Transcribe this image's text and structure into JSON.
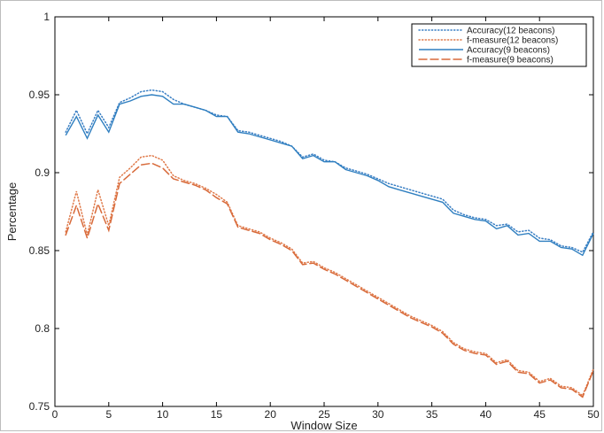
{
  "chart_data": {
    "type": "line",
    "title": "",
    "xlabel": "Window Size",
    "ylabel": "Percentage",
    "xlim": [
      0,
      50
    ],
    "ylim": [
      0.75,
      1.0
    ],
    "xticks": [
      0,
      5,
      10,
      15,
      20,
      25,
      30,
      35,
      40,
      45,
      50
    ],
    "yticks": [
      0.75,
      0.8,
      0.85,
      0.9,
      0.95,
      1.0
    ],
    "ytick_labels": [
      "0.75",
      "0.8",
      "0.85",
      "0.9",
      "0.95",
      "1"
    ],
    "grid": false,
    "legend_position": "top-right",
    "x": [
      1,
      2,
      3,
      4,
      5,
      6,
      7,
      8,
      9,
      10,
      11,
      12,
      13,
      14,
      15,
      16,
      17,
      18,
      19,
      20,
      21,
      22,
      23,
      24,
      25,
      26,
      27,
      28,
      29,
      30,
      31,
      32,
      33,
      34,
      35,
      36,
      37,
      38,
      39,
      40,
      41,
      42,
      43,
      44,
      45,
      46,
      47,
      48,
      49,
      50
    ],
    "series": [
      {
        "name": "Accuracy(12 beacons)",
        "color": "#3a7fc4",
        "style": "dotted",
        "values": [
          0.926,
          0.94,
          0.925,
          0.94,
          0.929,
          0.945,
          0.948,
          0.952,
          0.953,
          0.952,
          0.947,
          0.944,
          0.942,
          0.94,
          0.937,
          0.936,
          0.927,
          0.926,
          0.924,
          0.922,
          0.92,
          0.917,
          0.91,
          0.912,
          0.908,
          0.907,
          0.903,
          0.901,
          0.899,
          0.896,
          0.893,
          0.891,
          0.889,
          0.887,
          0.885,
          0.883,
          0.876,
          0.873,
          0.871,
          0.87,
          0.866,
          0.867,
          0.862,
          0.863,
          0.858,
          0.857,
          0.853,
          0.852,
          0.849,
          0.862
        ]
      },
      {
        "name": "f-measure(12 beacons)",
        "color": "#e07a4a",
        "style": "dotted",
        "values": [
          0.862,
          0.888,
          0.86,
          0.889,
          0.866,
          0.897,
          0.903,
          0.91,
          0.911,
          0.908,
          0.898,
          0.895,
          0.893,
          0.89,
          0.886,
          0.881,
          0.866,
          0.864,
          0.862,
          0.858,
          0.855,
          0.851,
          0.842,
          0.843,
          0.839,
          0.836,
          0.832,
          0.828,
          0.824,
          0.82,
          0.816,
          0.812,
          0.808,
          0.805,
          0.802,
          0.798,
          0.791,
          0.787,
          0.785,
          0.784,
          0.778,
          0.78,
          0.773,
          0.772,
          0.766,
          0.768,
          0.763,
          0.762,
          0.757,
          0.774
        ]
      },
      {
        "name": "Accuracy(9 beacons)",
        "color": "#2f7fc0",
        "style": "solid",
        "values": [
          0.924,
          0.936,
          0.922,
          0.937,
          0.926,
          0.944,
          0.946,
          0.949,
          0.95,
          0.949,
          0.944,
          0.944,
          0.942,
          0.94,
          0.936,
          0.936,
          0.926,
          0.925,
          0.923,
          0.921,
          0.919,
          0.917,
          0.909,
          0.911,
          0.907,
          0.907,
          0.902,
          0.9,
          0.898,
          0.895,
          0.891,
          0.889,
          0.887,
          0.885,
          0.883,
          0.881,
          0.874,
          0.872,
          0.87,
          0.869,
          0.864,
          0.866,
          0.86,
          0.861,
          0.856,
          0.856,
          0.852,
          0.851,
          0.847,
          0.861
        ]
      },
      {
        "name": "f-measure(9 beacons)",
        "color": "#d86a3a",
        "style": "dashed",
        "values": [
          0.86,
          0.879,
          0.858,
          0.88,
          0.863,
          0.893,
          0.899,
          0.905,
          0.906,
          0.903,
          0.896,
          0.894,
          0.892,
          0.889,
          0.884,
          0.88,
          0.865,
          0.863,
          0.861,
          0.857,
          0.854,
          0.85,
          0.841,
          0.842,
          0.838,
          0.835,
          0.831,
          0.827,
          0.823,
          0.819,
          0.815,
          0.811,
          0.807,
          0.804,
          0.801,
          0.797,
          0.79,
          0.786,
          0.784,
          0.783,
          0.777,
          0.779,
          0.772,
          0.771,
          0.765,
          0.767,
          0.762,
          0.761,
          0.756,
          0.773
        ]
      }
    ]
  }
}
